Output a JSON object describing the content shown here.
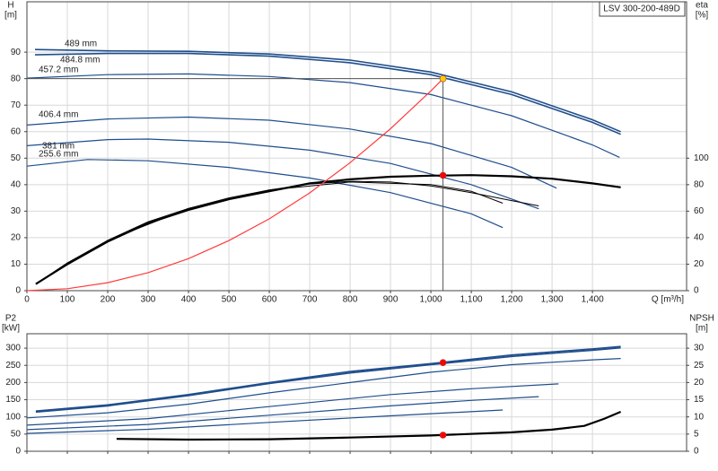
{
  "chart_data": [
    {
      "type": "line",
      "title": "LSV 300-200-489D",
      "y_label": "H",
      "y_unit": "[m]",
      "y2_label": "eta",
      "y2_unit": "[%]",
      "x_label": "Q [m³/h]",
      "xlim": [
        0,
        1633
      ],
      "xticks": [
        0,
        100,
        200,
        300,
        400,
        500,
        600,
        700,
        800,
        900,
        {
          "value": 1000,
          "label": "1,000"
        },
        {
          "value": 1100,
          "label": "1,100"
        },
        {
          "value": 1200,
          "label": "1,200"
        },
        {
          "value": 1300,
          "label": "1,300"
        },
        {
          "value": 1400,
          "label": "1,400"
        }
      ],
      "ylim": [
        0,
        109
      ],
      "yticks": [
        0,
        10,
        20,
        30,
        40,
        50,
        60,
        70,
        80,
        90
      ],
      "y2lim": [
        0,
        218
      ],
      "y2ticks": [
        0,
        20,
        40,
        60,
        80,
        100
      ],
      "grid": true,
      "series": [
        {
          "name": "489 mm",
          "color": "#1f4e8c",
          "x": [
            20,
            200,
            400,
            600,
            800,
            1000,
            1200,
            1400,
            1470
          ],
          "values": [
            91,
            90.5,
            90.3,
            89.3,
            87,
            82.5,
            75,
            64.5,
            60
          ]
        },
        {
          "name": "484.8 mm",
          "color": "#1f4e8c",
          "x": [
            20,
            200,
            400,
            600,
            800,
            1000,
            1200,
            1400,
            1470
          ],
          "values": [
            89,
            89.5,
            89.5,
            88.5,
            86,
            81.5,
            74,
            63.5,
            59
          ]
        },
        {
          "name": "457.2 mm",
          "color": "#1f4e8c",
          "x": [
            0,
            200,
            400,
            600,
            800,
            1000,
            1200,
            1400,
            1467
          ],
          "values": [
            80.2,
            81.5,
            81.8,
            80.8,
            78.5,
            74,
            66,
            55,
            50.3
          ]
        },
        {
          "name": "406.4 mm",
          "color": "#1f4e8c",
          "x": [
            0,
            200,
            400,
            600,
            800,
            1000,
            1200,
            1311
          ],
          "values": [
            62.5,
            64.8,
            65.5,
            64.3,
            61,
            55.5,
            46.5,
            38.7
          ]
        },
        {
          "name": "381 mm",
          "color": "#1f4e8c",
          "x": [
            0,
            200,
            300,
            500,
            700,
            900,
            1100,
            1267
          ],
          "values": [
            54.7,
            57,
            57.2,
            56,
            53,
            48,
            40,
            30.9
          ]
        },
        {
          "name": "255.6 mm",
          "color": "#1f4e8c",
          "x": [
            0,
            150,
            300,
            500,
            700,
            900,
            1100,
            1178
          ],
          "values": [
            47,
            49.5,
            49,
            46.5,
            42.5,
            37,
            29,
            23.8
          ]
        },
        {
          "axis": "y2",
          "color": "#000000",
          "x": [
            22,
            100,
            200,
            300,
            400,
            500,
            600,
            700,
            800,
            900,
            1000,
            1100,
            1200,
            1300,
            1400,
            1470
          ],
          "values": [
            5,
            20,
            37,
            51,
            61,
            69,
            75,
            81,
            84,
            86,
            86.8,
            87.2,
            86.3,
            84.5,
            81,
            78
          ]
        },
        {
          "axis": "y2",
          "color": "#000000",
          "x": [
            22,
            100,
            200,
            300,
            400,
            500,
            600,
            700,
            800,
            900,
            1000,
            1100,
            1200,
            1267
          ],
          "values": [
            5,
            21,
            38,
            52,
            62,
            70,
            76,
            80.5,
            82.5,
            82,
            79,
            74,
            68,
            64
          ]
        },
        {
          "axis": "y2",
          "color": "#000000",
          "x": [
            22,
            200,
            400,
            600,
            800,
            1000,
            1100,
            1178
          ],
          "values": [
            5,
            38,
            62,
            76,
            82,
            80,
            75,
            66
          ]
        },
        {
          "color": "#ff3b3b",
          "x": [
            0,
            100,
            200,
            300,
            400,
            500,
            600,
            700,
            800,
            900,
            1000,
            1030
          ],
          "values": [
            0,
            0.75,
            3.0,
            6.8,
            12.1,
            18.9,
            27.1,
            36.9,
            48.3,
            61.1,
            75.4,
            80
          ]
        }
      ],
      "markers": [
        {
          "x": 1030,
          "y": 80,
          "color": "#ffcc00",
          "crosshair": true
        },
        {
          "x": 1030,
          "y": 87,
          "axis": "y2",
          "color": "#ff0000"
        }
      ]
    },
    {
      "type": "line",
      "y_label": "P2",
      "y_unit": "[kW]",
      "y2_label": "NPSH",
      "y2_unit": "[m]",
      "xlim": [
        0,
        1633
      ],
      "ylim": [
        0,
        342
      ],
      "yticks": [
        0,
        50,
        100,
        150,
        200,
        250,
        300
      ],
      "y2lim": [
        0,
        34.2
      ],
      "y2ticks": [
        0,
        5,
        10,
        15,
        20,
        25,
        30
      ],
      "grid": true,
      "series": [
        {
          "color": "#1f4e8c",
          "x": [
            22,
            200,
            400,
            600,
            800,
            1000,
            1200,
            1400,
            1470
          ],
          "values": [
            117,
            135,
            165,
            200,
            232,
            255,
            280,
            298,
            305
          ]
        },
        {
          "color": "#1f4e8c",
          "x": [
            22,
            200,
            400,
            600,
            800,
            1000,
            1200,
            1400,
            1470
          ],
          "values": [
            114,
            132,
            162,
            197,
            228,
            252,
            276,
            294,
            301
          ]
        },
        {
          "color": "#1f4e8c",
          "x": [
            0,
            200,
            400,
            600,
            800,
            1000,
            1200,
            1400,
            1470
          ],
          "values": [
            97,
            112,
            137,
            170,
            200,
            230,
            252,
            266,
            270
          ]
        },
        {
          "color": "#1f4e8c",
          "x": [
            0,
            300,
            600,
            900,
            1100,
            1316
          ],
          "values": [
            76,
            95,
            130,
            165,
            182,
            196
          ]
        },
        {
          "color": "#1f4e8c",
          "x": [
            0,
            300,
            600,
            900,
            1100,
            1267
          ],
          "values": [
            63,
            78,
            105,
            132,
            148,
            159
          ]
        },
        {
          "color": "#1f4e8c",
          "x": [
            0,
            300,
            600,
            900,
            1178
          ],
          "values": [
            52,
            64,
            84,
            103,
            120
          ]
        },
        {
          "axis": "y2",
          "color": "#000000",
          "x": [
            222,
            400,
            600,
            800,
            1000,
            1200,
            1300,
            1380,
            1430,
            1470
          ],
          "values": [
            3.6,
            3.4,
            3.5,
            4.0,
            4.6,
            5.5,
            6.3,
            7.4,
            9.5,
            11.5
          ]
        }
      ],
      "markers": [
        {
          "x": 1030,
          "y": 258,
          "color": "#ff0000"
        },
        {
          "x": 1030,
          "y": 4.7,
          "axis": "y2",
          "color": "#ff0000"
        }
      ]
    }
  ]
}
